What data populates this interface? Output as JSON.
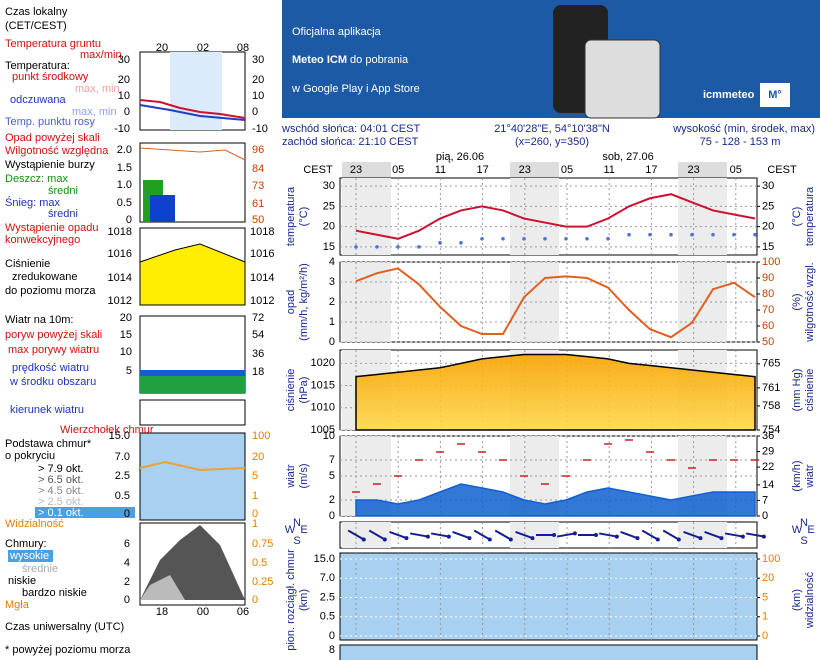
{
  "banner": {
    "line1": "Oficjalna aplikacja",
    "line2_bold": "Meteo ICM",
    "line2_rest": " do pobrania",
    "line3": "w Google Play i App Store",
    "logo": "icmmeteo",
    "badge": "M°"
  },
  "info": {
    "sunrise": "wschód słońca: 04:01 CEST",
    "sunset": "zachód słońca: 21:10 CEST",
    "coords": "21°40'28\"E, 54°10'38\"N",
    "grid": "(x=260, y=350)",
    "height_label": "wysokość (min, środek, max)",
    "height_values": "75 - 128 - 153 m"
  },
  "legend": {
    "local_time": "Czas lokalny",
    "local_zone": "(CET/CEST)",
    "local_hours": [
      "20",
      "02",
      "08"
    ],
    "ground_temp": "Temperatura gruntu",
    "ground_temp_range": "max/min",
    "temp": "Temperatura:",
    "temp_mid": "punkt środkowy",
    "temp_range": "max, min",
    "feels": "odczuwana",
    "feels_range": "max, min",
    "dew": "Temp. punktu rosy",
    "temp_ticks": [
      "30",
      "20",
      "10",
      "0",
      "-10"
    ],
    "precip_over": "Opad powyżej skali",
    "humidity": "Wilgotność względna",
    "storm": "Wystąpienie burzy",
    "rain_max": "Deszcz: max",
    "rain_mean": "średni",
    "snow_max": "Śnieg: max",
    "snow_mean": "średni",
    "conv1": "Wystąpienie opadu",
    "conv2": "konwekcyjnego",
    "precip_ticks": [
      "2.0",
      "1.5",
      "1.0",
      "0.5",
      "0"
    ],
    "humidity_ticks": [
      "96",
      "84",
      "73",
      "61",
      "50"
    ],
    "pressure1": "Ciśnienie",
    "pressure2": "zredukowane",
    "pressure3": "do poziomu morza",
    "pressure_ticks": [
      "1018",
      "1016",
      "1014",
      "1012"
    ],
    "wind": "Wiatr na 10m:",
    "gust_over": "poryw powyżej skali",
    "gust_max": "max porywy wiatru",
    "wind_speed": "prędkość wiatru",
    "wind_area": "w środku obszaru",
    "wind_ticks": [
      "20",
      "15",
      "10",
      "5"
    ],
    "wind_kmh_ticks": [
      "72",
      "54",
      "36",
      "18"
    ],
    "wind_dir": "kierunek wiatru",
    "cloud_top": "Wierzchołek chmur",
    "cloud_base": "Podstawa chmur*",
    "cover": "o pokryciu",
    "okt": [
      "> 7.9 okt.",
      "> 6.5 okt.",
      "> 4.5 okt.",
      "> 2.5 okt.",
      "> 0.1 okt."
    ],
    "visibility": "Widzialność",
    "base_ticks": [
      "15.0",
      "7.0",
      "2.5",
      "0.5",
      "0"
    ],
    "vis_ticks": [
      "100",
      "20",
      "5",
      "1",
      "0"
    ],
    "clouds": "Chmury:",
    "high": "wysokie",
    "mid": "średnie",
    "low": "niskie",
    "very_low": "bardzo niskie",
    "fog": "Mgła",
    "cloud_ticks": [
      "6",
      "4",
      "2",
      "0"
    ],
    "cloud_frac_ticks": [
      "1",
      "0.75",
      "0.5",
      "0.25",
      "0"
    ],
    "utc_hours": [
      "18",
      "00",
      "06"
    ],
    "utc": "Czas uniwersalny (UTC)",
    "footnote": "* powyżej poziomu morza"
  },
  "main": {
    "zone": "CEST",
    "days": [
      "pią, 26.06",
      "sob, 27.06"
    ],
    "hours": [
      "23",
      "05",
      "11",
      "17",
      "23",
      "05",
      "11",
      "17",
      "23",
      "05"
    ],
    "temperature": {
      "label": "temperatura",
      "unit": "(°C)",
      "ylim": [
        13,
        32
      ],
      "yticks": [
        15,
        20,
        25,
        30
      ],
      "y2lim": [
        13,
        32
      ],
      "y2ticks": [
        15,
        20,
        25,
        30
      ],
      "series": [
        {
          "type": "line",
          "color": "#d01030",
          "values": [
            19,
            18,
            17,
            19,
            22,
            24,
            25,
            24,
            22,
            21,
            20,
            20,
            22,
            25,
            27,
            28,
            26,
            24,
            23,
            22
          ]
        },
        {
          "type": "dots",
          "color": "#5070e0",
          "values": [
            15,
            15,
            15,
            15,
            16,
            16,
            17,
            17,
            17,
            17,
            17,
            17,
            17,
            18,
            18,
            18,
            18,
            18,
            18,
            18
          ]
        }
      ]
    },
    "humidity": {
      "label": "opad",
      "unit": "(mm/h, kg/m²/h)",
      "label2": "wilgotność wzgl.",
      "unit2": "(%)",
      "ylim": [
        0,
        4
      ],
      "yticks": [
        0,
        1,
        2,
        3,
        4
      ],
      "y2lim": [
        50,
        100
      ],
      "y2ticks": [
        50,
        60,
        70,
        80,
        90,
        100
      ],
      "series": [
        {
          "type": "line",
          "axis": "y2",
          "color": "#e06020",
          "values": [
            88,
            93,
            96,
            86,
            72,
            60,
            55,
            55,
            78,
            90,
            91,
            90,
            84,
            70,
            58,
            53,
            62,
            83,
            87,
            78
          ]
        }
      ]
    },
    "pressure": {
      "label": "ciśnienie",
      "unit": "(hPa)",
      "label2": "ciśnienie",
      "unit2": "(mm Hg)",
      "ylim": [
        1005,
        1023
      ],
      "yticks": [
        1005,
        1010,
        1015,
        1020
      ],
      "y2lim": [
        754,
        767.3
      ],
      "y2ticks": [
        754,
        758,
        761,
        765
      ],
      "series": [
        {
          "type": "area",
          "color": "#f5b800",
          "values": [
            1017,
            1017.5,
            1018,
            1018.5,
            1019,
            1020,
            1021,
            1021.5,
            1022,
            1022,
            1022,
            1021.5,
            1021,
            1020,
            1019.5,
            1019,
            1018.5,
            1018,
            1017.5,
            1017
          ]
        }
      ]
    },
    "wind": {
      "label": "wiatr",
      "unit": "(m/s)",
      "label2": "wiatr",
      "unit2": "(km/h)",
      "ylim": [
        0,
        10
      ],
      "yticks": [
        0,
        2,
        5,
        7,
        10
      ],
      "y2lim": [
        0,
        36
      ],
      "y2ticks": [
        0,
        7,
        14,
        22,
        29,
        36
      ],
      "series": [
        {
          "type": "area",
          "color": "#1060d0",
          "values": [
            2,
            2,
            1.5,
            2,
            3,
            4,
            3.5,
            3,
            2,
            1.5,
            2,
            3,
            3.5,
            3,
            2.5,
            2,
            2.5,
            3,
            3,
            3
          ]
        },
        {
          "type": "dash",
          "color": "#cc2020",
          "values": [
            3,
            4,
            5,
            7,
            8,
            9,
            8,
            7,
            5,
            4,
            5,
            7,
            9,
            9.5,
            8,
            7,
            6,
            7,
            7,
            7
          ]
        }
      ]
    },
    "direction": {
      "compass": [
        "W",
        "N",
        "E",
        "S"
      ],
      "values": [
        300,
        300,
        290,
        280,
        280,
        290,
        300,
        300,
        290,
        270,
        260,
        270,
        280,
        290,
        300,
        300,
        290,
        290,
        280,
        280
      ]
    },
    "clouds": {
      "label": "pion. rozciągł. chmur",
      "unit": "(km)",
      "label2": "widzialność",
      "unit2": "(km)",
      "yticks": [
        {
          "value": 15,
          "label": "15.0"
        },
        {
          "value": 7,
          "label": "7.0"
        },
        {
          "value": 2.5,
          "label": "2.5"
        },
        {
          "value": 0.5,
          "label": "0.5"
        },
        0
      ],
      "y2ticks": [
        100,
        20,
        5,
        1,
        0
      ]
    },
    "bottom_tick": 8
  }
}
